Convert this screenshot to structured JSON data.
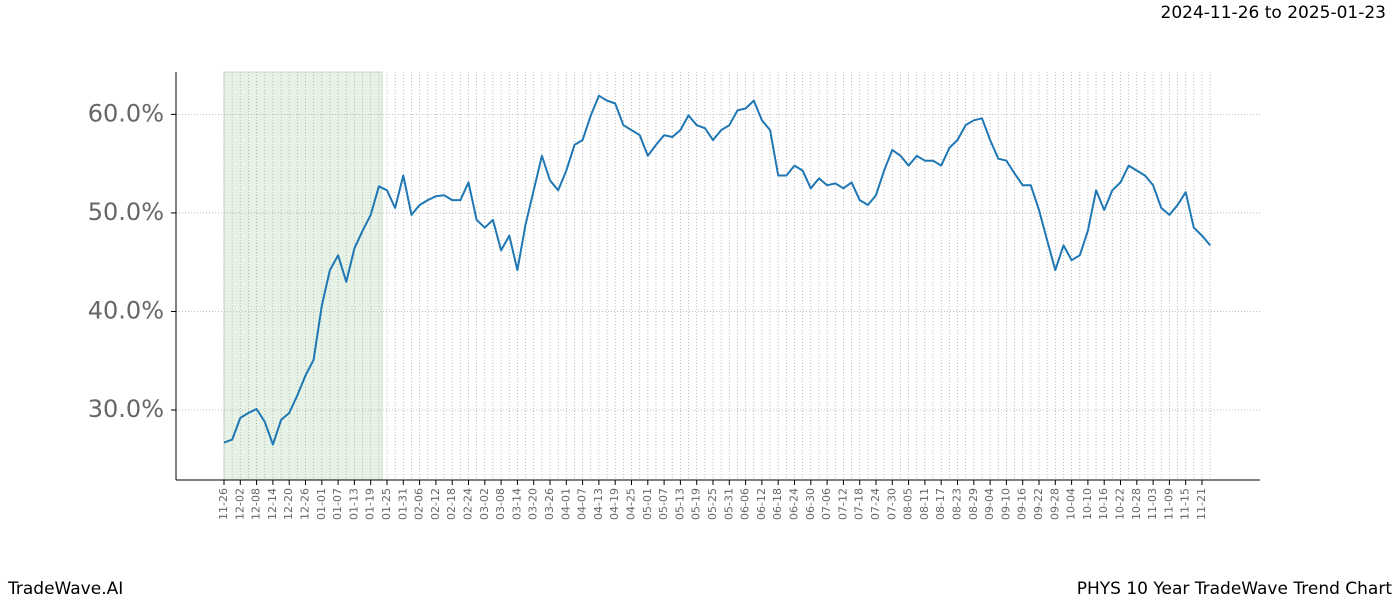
{
  "chart_data": {
    "type": "line",
    "title": "2024-11-26 to 2025-01-23",
    "brand": "TradeWave.AI",
    "caption": "PHYS 10 Year TradeWave Trend Chart",
    "categories": [
      "11-26",
      null,
      "12-02",
      null,
      "12-08",
      null,
      "12-14",
      null,
      "12-20",
      null,
      "12-26",
      null,
      "01-01",
      null,
      "01-07",
      null,
      "01-13",
      null,
      "01-19",
      null,
      "01-25",
      null,
      "01-31",
      null,
      "02-06",
      null,
      "02-12",
      null,
      "02-18",
      null,
      "02-24",
      null,
      "03-02",
      null,
      "03-08",
      null,
      "03-14",
      null,
      "03-20",
      null,
      "03-26",
      null,
      "04-01",
      null,
      "04-07",
      null,
      "04-13",
      null,
      "04-19",
      null,
      "04-25",
      null,
      "05-01",
      null,
      "05-07",
      null,
      "05-13",
      null,
      "05-19",
      null,
      "05-25",
      null,
      "05-31",
      null,
      "06-06",
      null,
      "06-12",
      null,
      "06-18",
      null,
      "06-24",
      null,
      "06-30",
      null,
      "07-06",
      null,
      "07-12",
      null,
      "07-18",
      null,
      "07-24",
      null,
      "07-30",
      null,
      "08-05",
      null,
      "08-11",
      null,
      "08-17",
      null,
      "08-23",
      null,
      "08-29",
      null,
      "09-04",
      null,
      "09-10",
      null,
      "09-16",
      null,
      "09-22",
      null,
      "09-28",
      null,
      "10-04",
      null,
      "10-10",
      null,
      "10-16",
      null,
      "10-22",
      null,
      "10-28",
      null,
      "11-03",
      null,
      "11-09",
      null,
      "11-15",
      null,
      "11-21",
      null
    ],
    "values": [
      26.7,
      27.0,
      29.2,
      29.7,
      30.1,
      28.8,
      26.5,
      29.0,
      29.7,
      31.5,
      33.5,
      35.1,
      40.6,
      44.2,
      45.7,
      43.0,
      46.4,
      48.2,
      49.8,
      52.7,
      52.3,
      50.5,
      53.8,
      49.8,
      50.8,
      51.3,
      51.7,
      51.8,
      51.3,
      51.3,
      53.1,
      49.3,
      48.5,
      49.3,
      46.2,
      47.7,
      44.2,
      48.8,
      52.3,
      55.8,
      53.3,
      52.3,
      54.3,
      56.9,
      57.4,
      59.9,
      61.9,
      61.4,
      61.1,
      58.9,
      58.4,
      57.9,
      55.8,
      56.9,
      57.9,
      57.7,
      58.4,
      59.9,
      58.9,
      58.6,
      57.4,
      58.4,
      58.9,
      60.4,
      60.6,
      61.4,
      59.4,
      58.4,
      53.8,
      53.8,
      54.8,
      54.3,
      52.5,
      53.5,
      52.8,
      53.0,
      52.5,
      53.1,
      51.3,
      50.8,
      51.8,
      54.3,
      56.4,
      55.8,
      54.8,
      55.8,
      55.3,
      55.3,
      54.8,
      56.6,
      57.4,
      58.9,
      59.4,
      59.6,
      57.4,
      55.5,
      55.3,
      54.0,
      52.8,
      52.8,
      50.3,
      47.2,
      44.2,
      46.7,
      45.2,
      45.7,
      48.2,
      52.3,
      50.3,
      52.3,
      53.1,
      54.8,
      54.3,
      53.8,
      52.8,
      50.5,
      49.8,
      50.8,
      52.1,
      48.5,
      47.7,
      46.7
    ],
    "color": "#1f77b4",
    "ylim": [
      22.9,
      64.3
    ],
    "yticks": [
      {
        "value": 30,
        "label": "30.0%"
      },
      {
        "value": 40,
        "label": "40.0%"
      },
      {
        "value": 50,
        "label": "50.0%"
      },
      {
        "value": 60,
        "label": "60.0%"
      }
    ],
    "grid": true
  }
}
